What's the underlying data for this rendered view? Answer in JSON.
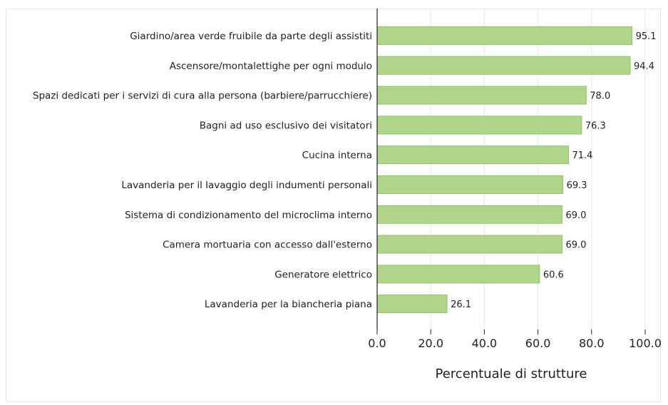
{
  "chart_data": {
    "type": "bar",
    "orientation": "horizontal",
    "categories": [
      "Giardino/area verde fruibile da parte degli assistiti",
      "Ascensore/montalettighe per ogni modulo",
      "Spazi dedicati per i servizi di cura alla persona (barbiere/parrucchiere)",
      "Bagni ad uso esclusivo dei visitatori",
      "Cucina interna",
      "Lavanderia per il lavaggio degli indumenti personali",
      "Sistema di condizionamento del microclima interno",
      "Camera mortuaria con accesso dall'esterno",
      "Generatore elettrico",
      "Lavanderia per la biancheria piana"
    ],
    "values": [
      95.1,
      94.4,
      78.0,
      76.3,
      71.4,
      69.3,
      69.0,
      69.0,
      60.6,
      26.1
    ],
    "value_labels": [
      "95.1",
      "94.4",
      "78.0",
      "76.3",
      "71.4",
      "69.3",
      "69.0",
      "69.0",
      "60.6",
      "26.1"
    ],
    "xlabel": "Percentuale di strutture",
    "ylabel": "",
    "xlim": [
      0,
      100
    ],
    "xticks": [
      0,
      20,
      40,
      60,
      80,
      100
    ],
    "xtick_labels": [
      "0.0",
      "20.0",
      "40.0",
      "60.0",
      "80.0",
      "100.0"
    ],
    "grid": "vertical",
    "bar_color": "#aed58a",
    "bar_edge_color": "#92c26a",
    "grid_color": "#e8e8e8",
    "axis_color": "#222222"
  }
}
